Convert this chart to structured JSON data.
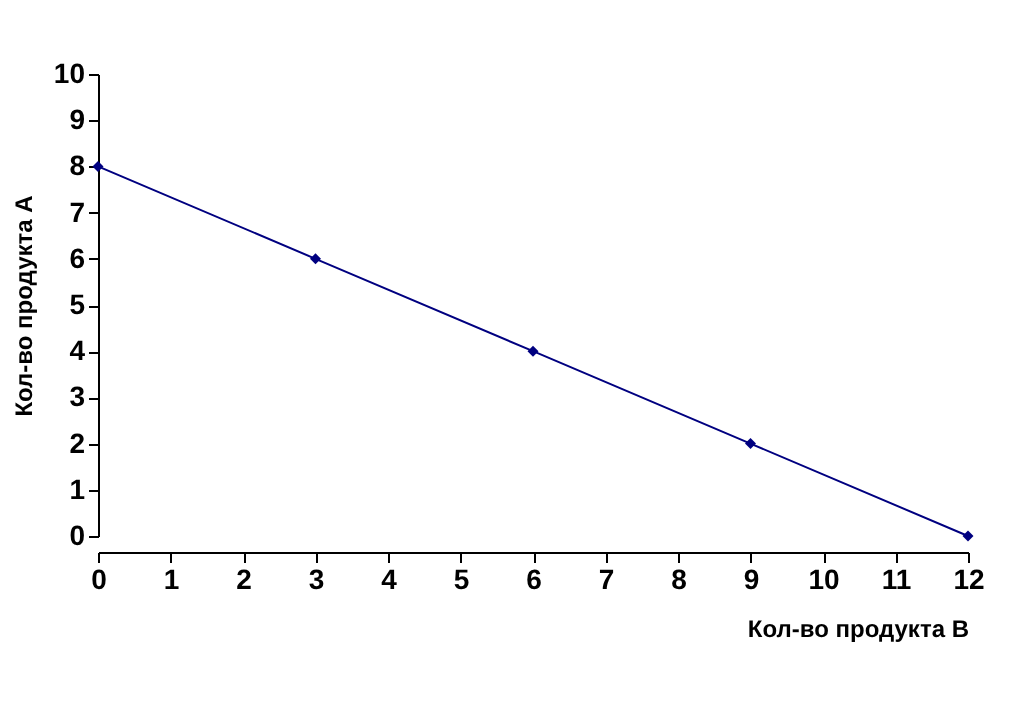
{
  "chart_data": {
    "type": "line",
    "xlabel": "Кол-во продукта B",
    "ylabel": "Кол-во продукта А",
    "x": [
      0,
      3,
      6,
      9,
      12
    ],
    "series": [
      {
        "color": "#000080",
        "values": [
          8,
          6,
          4,
          2,
          0
        ]
      }
    ],
    "xlim": [
      0,
      12
    ],
    "xticks": [
      0,
      1,
      2,
      3,
      4,
      5,
      6,
      7,
      8,
      9,
      10,
      11,
      12
    ],
    "ylim": [
      0,
      10
    ],
    "yticks": [
      0,
      1,
      2,
      3,
      4,
      5,
      6,
      7,
      8,
      9,
      10
    ],
    "grid": false,
    "legend": false,
    "marker": "diamond",
    "line_style": "solid"
  }
}
